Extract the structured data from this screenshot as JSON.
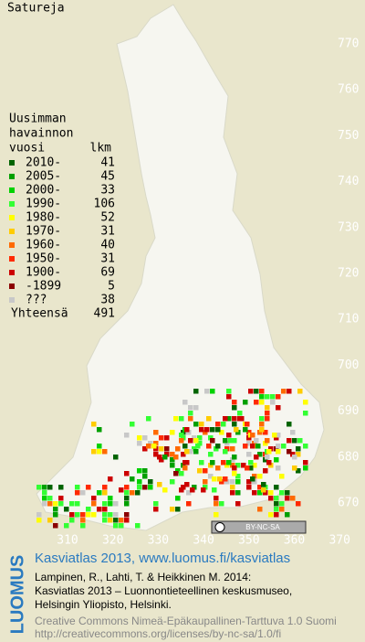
{
  "title": "Satureja",
  "legend": {
    "heading": [
      "Uusimman",
      "havainnon",
      "vuosi"
    ],
    "count_heading": "lkm",
    "items": [
      {
        "label": "2010-",
        "count": 41,
        "color": "#006400"
      },
      {
        "label": "2005-",
        "count": 45,
        "color": "#00a000"
      },
      {
        "label": "2000-",
        "count": 33,
        "color": "#00d200"
      },
      {
        "label": "1990-",
        "count": 106,
        "color": "#33ff33"
      },
      {
        "label": "1980-",
        "count": 52,
        "color": "#ffff00"
      },
      {
        "label": "1970-",
        "count": 31,
        "color": "#ffcc00"
      },
      {
        "label": "1960-",
        "count": 40,
        "color": "#ff6a00"
      },
      {
        "label": "1950-",
        "count": 31,
        "color": "#ff2a00"
      },
      {
        "label": "1900-",
        "count": 69,
        "color": "#cc0000"
      },
      {
        "label": "-1899",
        "count": 5,
        "color": "#8b0000"
      },
      {
        "label": "???",
        "count": 38,
        "color": "#c8c8c8"
      }
    ],
    "total_label": "Yhteensä",
    "total": 491
  },
  "grid": {
    "y_labels": [
      770,
      760,
      750,
      740,
      730,
      720,
      710,
      700,
      690,
      680,
      670
    ],
    "x_labels": [
      310,
      320,
      330,
      340,
      350,
      360,
      370
    ]
  },
  "license_badge": "BY-NC-SA",
  "footer": {
    "logo": "LUOMUS",
    "link": "Kasviatlas 2013, www.luomus.fi/kasviatlas",
    "citation": [
      "Lampinen, R., Lahti, T. & Heikkinen M. 2014:",
      "Kasviatlas 2013 – Luonnontieteellinen keskusmuseo,",
      "Helsingin Yliopisto, Helsinki."
    ],
    "license": [
      "Creative Commons Nimeä-Epäkaupallinen-Tarttuva 1.0 Suomi",
      "http://creativecommons.org/licenses/by-nc-sa/1.0/fi"
    ]
  }
}
